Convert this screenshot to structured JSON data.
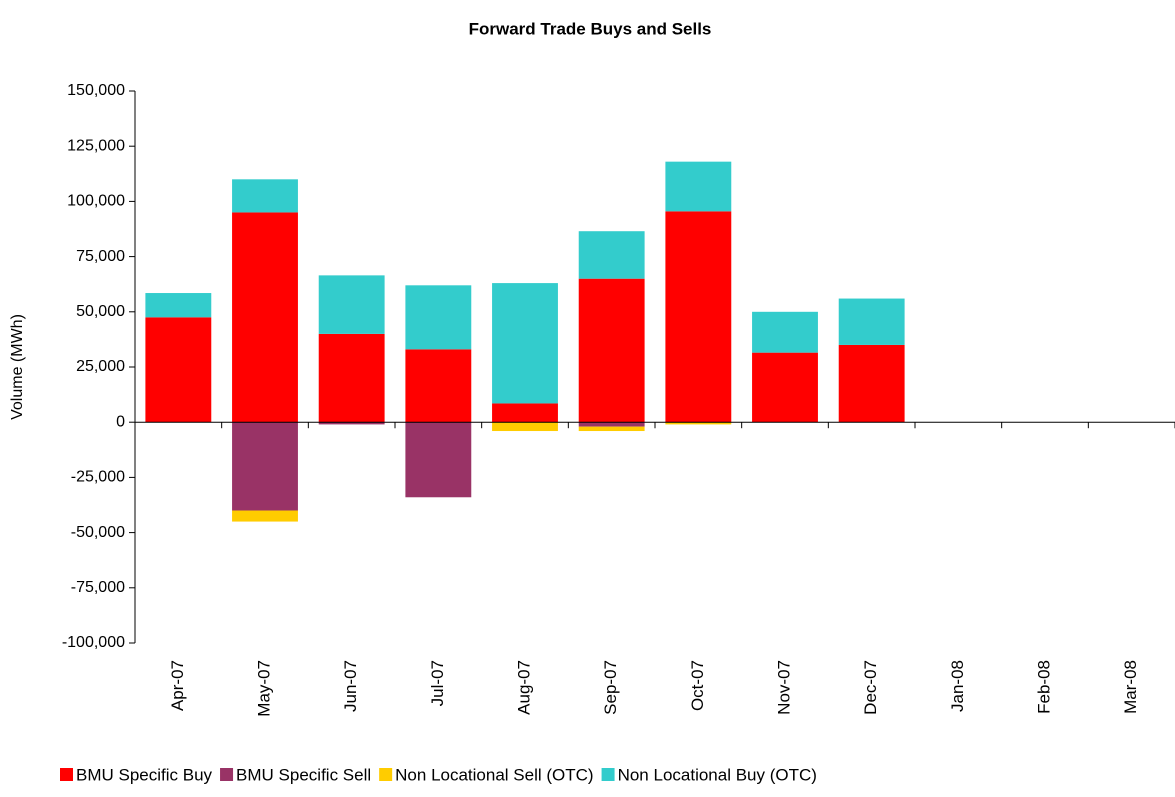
{
  "chart_data": {
    "type": "bar",
    "stacked": true,
    "title": "Forward Trade Buys and Sells",
    "y_label": "Volume (MWh)",
    "categories": [
      "Apr-07",
      "May-07",
      "Jun-07",
      "Jul-07",
      "Aug-07",
      "Sep-07",
      "Oct-07",
      "Nov-07",
      "Dec-07",
      "Jan-08",
      "Feb-08",
      "Mar-08"
    ],
    "series": [
      {
        "name": "BMU Specific Buy",
        "color": "#ff0000",
        "values": [
          47500,
          95000,
          40000,
          33000,
          8500,
          65000,
          95500,
          31500,
          35000,
          null,
          null,
          null
        ]
      },
      {
        "name": "BMU Specific Sell",
        "color": "#993366",
        "values": [
          null,
          -40000,
          -1000,
          -34000,
          null,
          -2000,
          null,
          null,
          null,
          null,
          null,
          null
        ]
      },
      {
        "name": "Non Locational Sell (OTC)",
        "color": "#ffcc00",
        "values": [
          null,
          -5000,
          null,
          null,
          -4000,
          -2000,
          -1000,
          null,
          null,
          null,
          null,
          null
        ]
      },
      {
        "name": "Non Locational Buy (OTC)",
        "color": "#33cccc",
        "values": [
          11000,
          15000,
          26500,
          29000,
          54500,
          21500,
          22500,
          18500,
          21000,
          null,
          null,
          null
        ]
      }
    ],
    "ylim": [
      -100000,
      150000
    ],
    "yticks": [
      {
        "value": -100000,
        "label": "-100,000"
      },
      {
        "value": -75000,
        "label": "-75,000"
      },
      {
        "value": -50000,
        "label": "-50,000"
      },
      {
        "value": -25000,
        "label": "-25,000"
      },
      0,
      {
        "value": 25000,
        "label": "25,000"
      },
      {
        "value": 50000,
        "label": "50,000"
      },
      {
        "value": 75000,
        "label": "75,000"
      },
      {
        "value": 100000,
        "label": "100,000"
      },
      {
        "value": 125000,
        "label": "125,000"
      },
      {
        "value": 150000,
        "label": "150,000"
      }
    ],
    "legend": "bottom"
  }
}
